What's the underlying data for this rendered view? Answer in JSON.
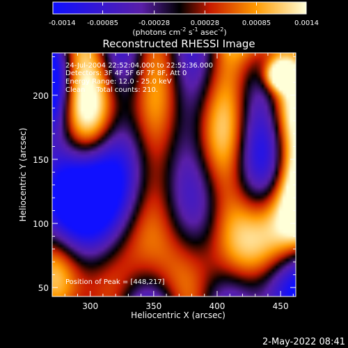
{
  "chart_data": {
    "type": "heatmap",
    "title": "Reconstructed RHESSI Image",
    "xlabel": "Heliocentric X (arcsec)",
    "ylabel": "Heliocentric Y (arcsec)",
    "xlim": [
      270,
      462
    ],
    "ylim": [
      43,
      233
    ],
    "xticks": [
      300,
      350,
      400,
      450
    ],
    "xtick_labels": [
      "300",
      "350",
      "400",
      "450"
    ],
    "yticks": [
      50,
      100,
      150,
      200
    ],
    "ytick_labels": [
      "50",
      "100",
      "150",
      "200"
    ],
    "colorbar": {
      "range": [
        -0.0014,
        0.0014
      ],
      "tick_values": [
        -0.0014,
        -0.00085,
        -0.00028,
        0.00028,
        0.00085,
        0.0014
      ],
      "tick_labels": [
        "-0.0014",
        "-0.00085",
        "-0.00028",
        "0.00028",
        "0.00085",
        "0.0014"
      ],
      "units_prefix": "(photons cm",
      "units_exp1": "-2",
      "units_mid1": " s",
      "units_exp2": "-1",
      "units_mid2": " asec",
      "units_exp3": "-2",
      "units_suffix": ")"
    },
    "annotations": [
      "24-Jul-2004 22:52:04.000 to 22:52:36.000",
      "Detectors: 3F 4F 5F 6F 7F 8F, Att 0",
      "Energy Range: 12.0 - 25.0 keV",
      "Clean     Total counts: 210."
    ],
    "peak_label": "Position of Peak = [448,217]",
    "peak": {
      "x": 448,
      "y": 217
    },
    "colors": {
      "low": "#1010ff",
      "mid_low": "#5a1fa8",
      "zero": "#000000",
      "mid_high": "#c81a00",
      "high": "#ff9a00",
      "top": "#ffffd8"
    },
    "grid": false
  },
  "footer": {
    "timestamp": "2-May-2022 08:41"
  }
}
